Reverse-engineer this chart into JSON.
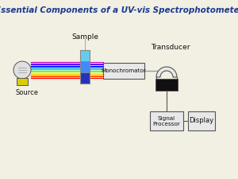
{
  "title": "Essential Components of a UV-vis Spectrophotometer",
  "title_color": "#1a3a8f",
  "title_fontsize": 7.5,
  "bg_color": "#f2efe3",
  "labels": {
    "source": "Source",
    "sample": "Sample",
    "monochromator": "Monochromator",
    "transducer": "Transducer",
    "signal_processor": "Signal\nProcessor",
    "display": "Display"
  },
  "rainbow_colors": [
    "#cc00cc",
    "#8800ff",
    "#4400ff",
    "#0000ff",
    "#0055ff",
    "#00aaff",
    "#00ffee",
    "#44ff00",
    "#aaff00",
    "#ffff00",
    "#ffcc00",
    "#ff8800",
    "#ff4400",
    "#ff0000"
  ],
  "text_color": "#111111",
  "box_edge": "#555555",
  "box_face": "#e8e8e8",
  "black": "#111111",
  "bulb_face": "#e0e0e0",
  "bulb_base": "#ddcc00",
  "line_color": "#555555"
}
